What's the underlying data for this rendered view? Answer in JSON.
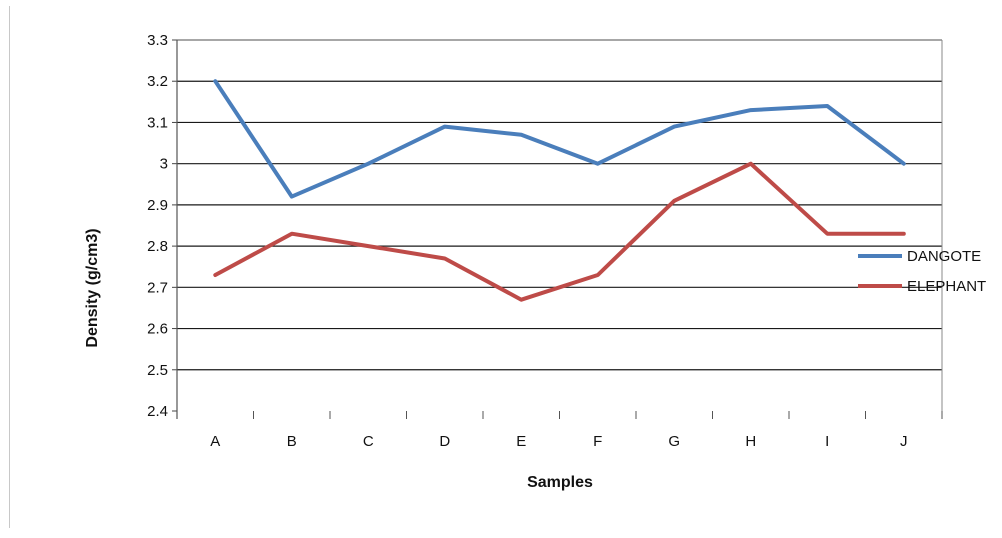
{
  "chart_data": {
    "type": "line",
    "categories": [
      "A",
      "B",
      "C",
      "D",
      "E",
      "F",
      "G",
      "H",
      "I",
      "J"
    ],
    "series": [
      {
        "name": "DANGOTE",
        "values": [
          3.2,
          2.92,
          3.0,
          3.09,
          3.07,
          3.0,
          3.09,
          3.13,
          3.14,
          3.0
        ]
      },
      {
        "name": "ELEPHANT",
        "values": [
          2.73,
          2.83,
          2.8,
          2.77,
          2.67,
          2.73,
          2.91,
          3.0,
          2.83,
          2.83
        ]
      }
    ],
    "title": "",
    "xlabel": "Samples",
    "ylabel": "Density (g/cm3)",
    "ylim": [
      2.4,
      3.3
    ],
    "yticks": [
      "2.4",
      "2.5",
      "2.6",
      "2.7",
      "2.8",
      "2.9",
      "3",
      "3.1",
      "3.2",
      "3.3"
    ],
    "grid": true,
    "legend": "right",
    "colors": {
      "DANGOTE": "#4a7ebb",
      "ELEPHANT": "#be4b48"
    }
  }
}
